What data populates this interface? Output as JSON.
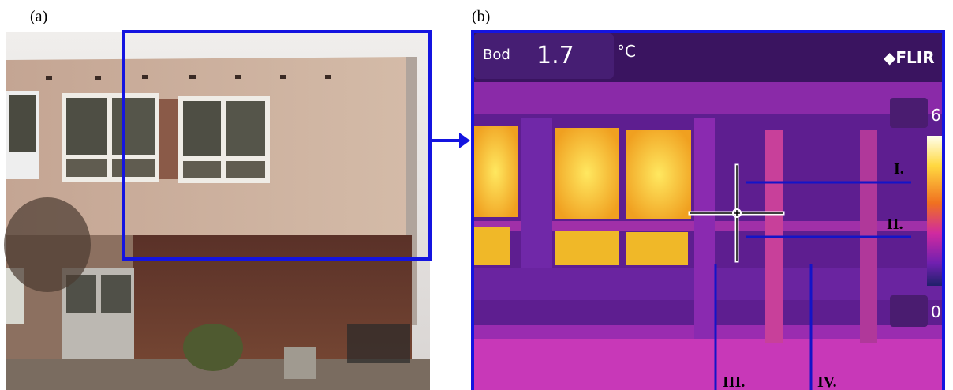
{
  "panels": [
    {
      "label": "(a)"
    },
    {
      "label": "(b)",
      "readout": {
        "name": "Bod",
        "value": 1.7,
        "unit": "°C"
      },
      "brand": "FLIR",
      "scale": {
        "max": 6,
        "min": 0
      },
      "markers": [
        "I.",
        "II.",
        "III.",
        "IV."
      ]
    }
  ]
}
